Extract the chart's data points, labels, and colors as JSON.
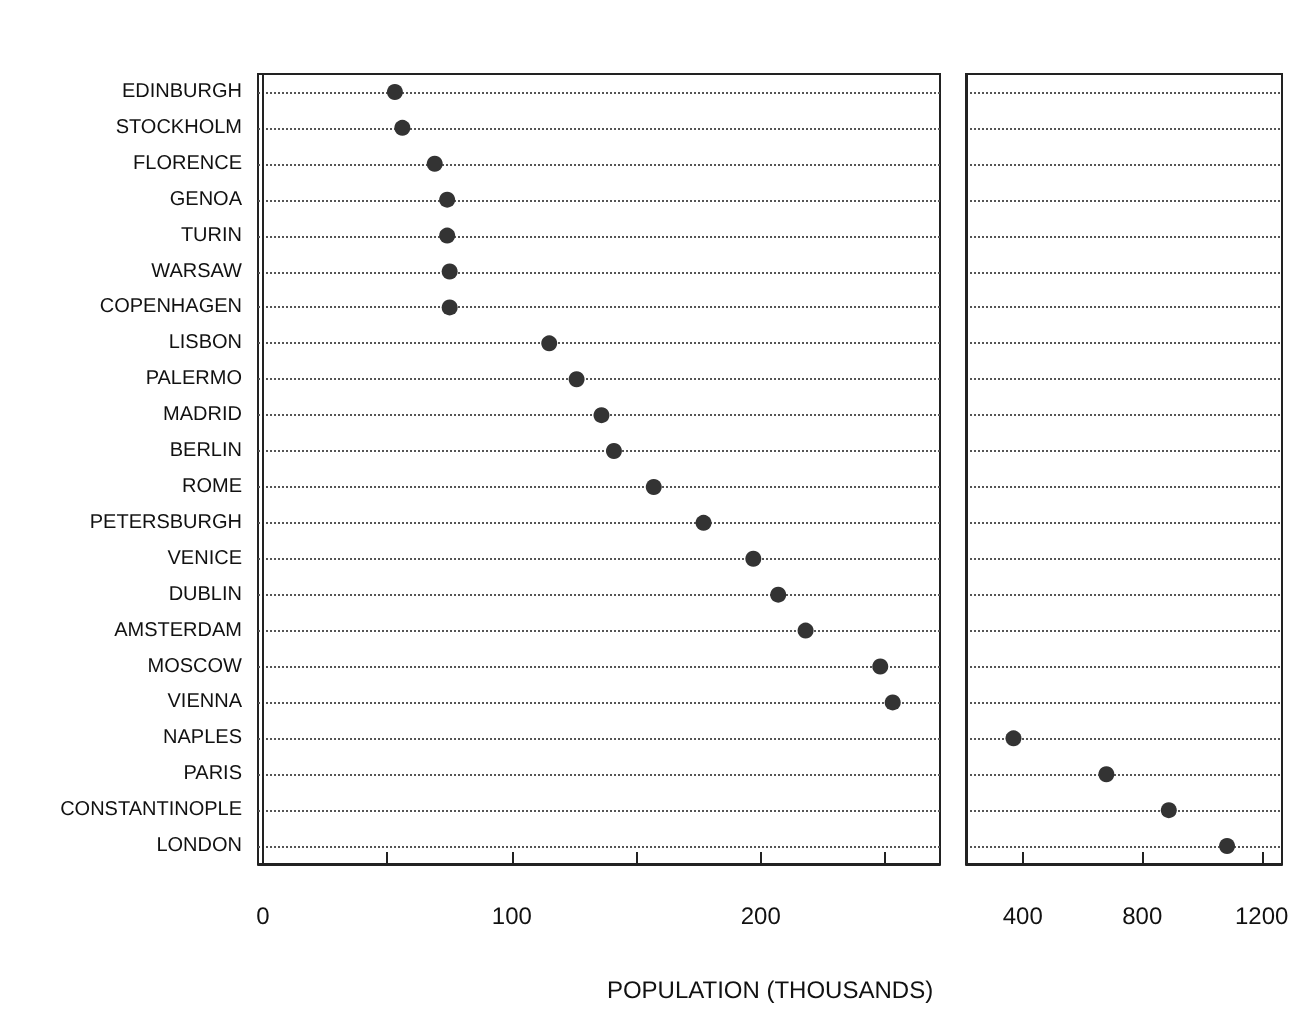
{
  "chart_data": [
    {
      "type": "scatter",
      "xlabel": "POPULATION (THOUSANDS)",
      "categories": [
        "EDINBURGH",
        "STOCKHOLM",
        "FLORENCE",
        "GENOA",
        "TURIN",
        "WARSAW",
        "COPENHAGEN",
        "LISBON",
        "PALERMO",
        "MADRID",
        "BERLIN",
        "ROME",
        "PETERSBURGH",
        "VENICE",
        "DUBLIN",
        "AMSTERDAM",
        "MOSCOW",
        "VIENNA",
        "NAPLES",
        "PARIS",
        "CONSTANTINOPLE",
        "LONDON"
      ],
      "orientation": "horizontal",
      "series": [
        {
          "color": "#333333",
          "values": [
            53,
            56,
            69,
            74,
            74,
            75,
            75,
            115,
            126,
            136,
            141,
            157,
            177,
            197,
            207,
            218,
            248,
            253,
            null,
            null,
            null,
            null
          ]
        }
      ],
      "xlim": [
        -2,
        272
      ],
      "xticks": [
        0,
        {
          "value": 50,
          "label": null
        },
        100,
        {
          "value": 150,
          "label": null
        },
        200,
        {
          "value": 250,
          "label": null
        }
      ],
      "grid": "y",
      "marker": "circle",
      "line_style": "dotted"
    },
    {
      "type": "scatter",
      "categories": [
        null,
        null,
        null,
        null,
        null,
        null,
        null,
        null,
        null,
        null,
        null,
        null,
        null,
        null,
        null,
        null,
        null,
        null,
        null,
        null,
        null,
        null
      ],
      "orientation": "horizontal",
      "series": [
        {
          "color": "#333333",
          "values": [
            null,
            null,
            null,
            null,
            null,
            null,
            null,
            null,
            null,
            null,
            null,
            null,
            null,
            null,
            null,
            null,
            null,
            null,
            369,
            680,
            889,
            1084
          ]
        }
      ],
      "xlim": [
        210,
        1268
      ],
      "xticks": [
        400,
        800,
        1200
      ],
      "grid": "y",
      "marker": "circle",
      "line_style": "dotted",
      "tick_labels": "x"
    }
  ]
}
